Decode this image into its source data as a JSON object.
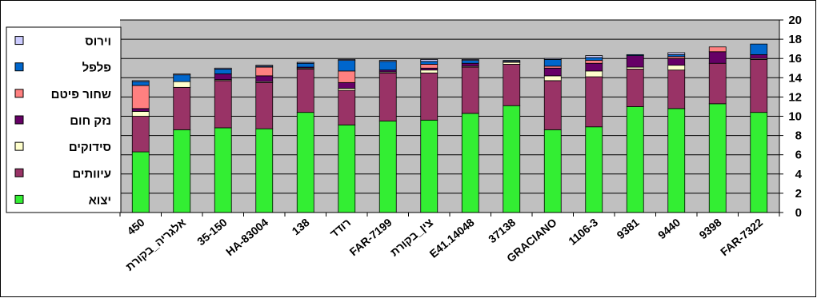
{
  "chart_data": {
    "type": "bar",
    "stacked": true,
    "categories": [
      "450",
      "אלגריה_בקורת",
      "35-150",
      "HA-83004",
      "138",
      "רודד",
      "FAR-7199",
      "צין_בקורת",
      "E41.14048",
      "37138",
      "GRACIANO",
      "1106-3",
      "9381",
      "9440",
      "9398",
      "FAR-7322"
    ],
    "ylim": [
      0,
      20
    ],
    "yticks": [
      "0",
      "2",
      "4",
      "6",
      "8",
      "10",
      "12",
      "14",
      "16",
      "18",
      "20"
    ],
    "grid": true,
    "legend_position": "left",
    "colors": {
      "יצוא": "#33ee33",
      "עיוותים": "#993366",
      "סידוקים": "#ffffcc",
      "נזק חום": "#660066",
      "שחור פיטם": "#ff8080",
      "פלפל": "#0066cc",
      "וירוס": "#ccccff",
      "plot_background": "#c0c0c0"
    },
    "series": [
      {
        "name": "יצוא",
        "values": [
          6.3,
          8.6,
          8.8,
          8.7,
          10.4,
          9.1,
          9.5,
          9.6,
          10.3,
          11.1,
          8.6,
          8.9,
          11.0,
          10.8,
          11.3,
          10.4
        ]
      },
      {
        "name": "עיוותים",
        "values": [
          3.7,
          4.4,
          4.9,
          4.8,
          4.5,
          3.6,
          5.0,
          4.9,
          4.8,
          4.3,
          5.1,
          5.2,
          3.9,
          4.0,
          4.2,
          5.5
        ]
      },
      {
        "name": "סידוקים",
        "values": [
          0.5,
          0.6,
          0.1,
          0.1,
          0.1,
          0.2,
          0.1,
          0.3,
          0.1,
          0.2,
          0.5,
          0.6,
          0.2,
          0.5,
          0.0,
          0.1
        ]
      },
      {
        "name": "נזק חום",
        "values": [
          0.3,
          0.0,
          0.6,
          0.6,
          0.1,
          0.6,
          0.2,
          0.2,
          0.3,
          0.0,
          0.8,
          0.8,
          1.2,
          0.7,
          1.2,
          0.4
        ]
      },
      {
        "name": "שחור פיטם",
        "values": [
          2.4,
          0.0,
          0.0,
          0.9,
          0.0,
          1.2,
          0.0,
          0.4,
          0.0,
          0.1,
          0.2,
          0.3,
          0.0,
          0.2,
          0.5,
          0.0
        ]
      },
      {
        "name": "פלפל",
        "values": [
          0.4,
          0.7,
          0.5,
          0.1,
          0.4,
          1.1,
          0.9,
          0.3,
          0.3,
          0.1,
          0.7,
          0.3,
          0.1,
          0.2,
          0.0,
          1.1
        ]
      },
      {
        "name": "וירוס",
        "values": [
          0.1,
          0.1,
          0.1,
          0.1,
          0.1,
          0.1,
          0.1,
          0.2,
          0.1,
          0.0,
          0.1,
          0.2,
          0.0,
          0.2,
          0.0,
          0.0
        ]
      }
    ]
  }
}
